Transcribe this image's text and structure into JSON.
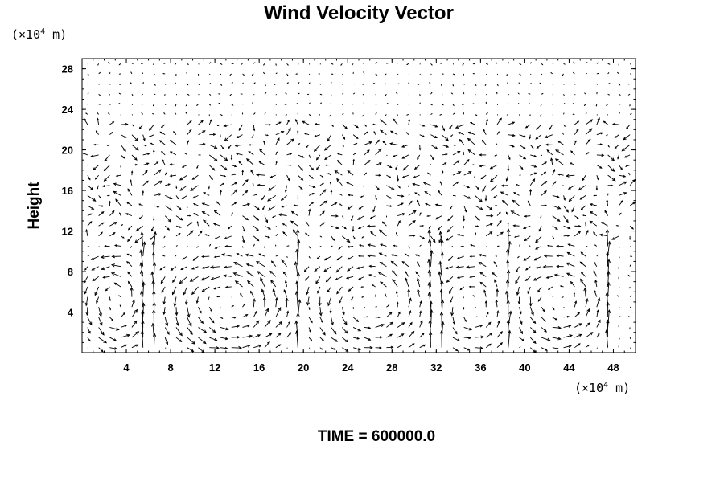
{
  "chart_data": {
    "type": "vector_field",
    "title": "Wind Velocity Vector",
    "ylabel": "Height",
    "xlabel": "",
    "x_unit": {
      "prefix": "(×10",
      "exponent": "4",
      "suffix": " m)"
    },
    "y_unit": {
      "prefix": "(×10",
      "exponent": "4",
      "suffix": " m)"
    },
    "xlim": [
      0,
      50
    ],
    "ylim": [
      0,
      29
    ],
    "xticks": [
      4,
      8,
      12,
      16,
      20,
      24,
      28,
      32,
      36,
      40,
      44,
      48
    ],
    "yticks": [
      4,
      8,
      12,
      16,
      20,
      24,
      28
    ],
    "grid": false,
    "time_label": "TIME = 600000.0",
    "grid_spacing": {
      "dx": 1.0,
      "dy": 1.0
    },
    "cells": [
      {
        "x": 6,
        "y": 0,
        "ny": 11,
        "u": 0,
        "v": 1.2,
        "mode": "up"
      },
      {
        "x": 19.5,
        "y": 0,
        "ny": 11,
        "u": 0,
        "v": 1.2,
        "mode": "up"
      },
      {
        "x": 32,
        "y": 0,
        "ny": 11,
        "u": 0,
        "v": 1.2,
        "mode": "up"
      },
      {
        "x": 38.5,
        "y": 0,
        "ny": 11,
        "u": 0,
        "v": 1.2,
        "mode": "up"
      },
      {
        "x": 47.5,
        "y": 0,
        "ny": 11,
        "u": 0,
        "v": 1.2,
        "mode": "up"
      }
    ],
    "vortices": [
      {
        "cx": 3.0,
        "cy": 5.0,
        "rx": 3.0,
        "ry": 5.0,
        "sense": -1,
        "strength": 2.8
      },
      {
        "cx": 13.0,
        "cy": 4.8,
        "rx": 6.5,
        "ry": 5.0,
        "sense": -1,
        "strength": 3.0
      },
      {
        "cx": 26.0,
        "cy": 5.0,
        "rx": 6.0,
        "ry": 5.2,
        "sense": -1,
        "strength": 2.6
      },
      {
        "cx": 35.2,
        "cy": 4.8,
        "rx": 3.2,
        "ry": 5.0,
        "sense": -1,
        "strength": 2.4
      },
      {
        "cx": 43.0,
        "cy": 5.0,
        "rx": 4.6,
        "ry": 5.0,
        "sense": -1,
        "strength": 2.6
      }
    ],
    "upper_flow": {
      "y_from": 11,
      "y_to": 23,
      "u": 1.0,
      "v": 0.0,
      "strength": 1.0
    },
    "top_calm_from": 24
  }
}
